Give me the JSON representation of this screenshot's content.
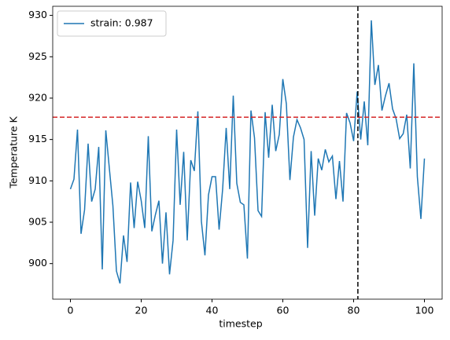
{
  "chart_data": {
    "type": "line",
    "x_label": "timestep",
    "y_label": "Temperature K",
    "x": [
      0,
      1,
      2,
      3,
      4,
      5,
      6,
      7,
      8,
      9,
      10,
      11,
      12,
      13,
      14,
      15,
      16,
      17,
      18,
      19,
      20,
      21,
      22,
      23,
      24,
      25,
      26,
      27,
      28,
      29,
      30,
      31,
      32,
      33,
      34,
      35,
      36,
      37,
      38,
      39,
      40,
      41,
      42,
      43,
      44,
      45,
      46,
      47,
      48,
      49,
      50,
      51,
      52,
      53,
      54,
      55,
      56,
      57,
      58,
      59,
      60,
      61,
      62,
      63,
      64,
      65,
      66,
      67,
      68,
      69,
      70,
      71,
      72,
      73,
      74,
      75,
      76,
      77,
      78,
      79,
      80,
      81,
      82,
      83,
      84,
      85,
      86,
      87,
      88,
      89,
      90,
      91,
      92,
      93,
      94,
      95,
      96,
      97,
      98,
      99,
      100
    ],
    "series": [
      {
        "name": "strain: 0.987",
        "color": "#1f77b4",
        "values": [
          909.0,
          910.2,
          916.2,
          903.6,
          906.5,
          914.5,
          907.5,
          909.0,
          914.1,
          899.3,
          916.1,
          911.5,
          907.0,
          899.1,
          897.6,
          903.4,
          900.2,
          909.8,
          904.3,
          909.9,
          907.6,
          904.3,
          915.4,
          903.9,
          905.9,
          907.6,
          900.0,
          906.2,
          898.7,
          902.8,
          916.2,
          907.1,
          913.5,
          902.8,
          912.5,
          911.2,
          918.4,
          905.1,
          901.0,
          908.3,
          910.5,
          910.5,
          904.1,
          909.0,
          916.4,
          909.0,
          920.3,
          909.7,
          907.4,
          907.1,
          900.6,
          918.5,
          915.2,
          906.4,
          905.7,
          918.3,
          912.8,
          919.2,
          913.6,
          915.6,
          922.3,
          919.3,
          910.1,
          915.3,
          917.4,
          916.4,
          915.0,
          901.9,
          913.6,
          905.8,
          912.7,
          911.3,
          913.8,
          912.3,
          913.0,
          907.8,
          912.4,
          907.5,
          918.2,
          917.0,
          914.8,
          920.8,
          915.0,
          919.6,
          914.3,
          929.4,
          921.6,
          924.0,
          918.5,
          920.3,
          921.8,
          918.7,
          917.5,
          915.1,
          915.7,
          918.0,
          911.5,
          924.2,
          910.5,
          905.4,
          912.7
        ]
      }
    ],
    "hline": {
      "value": 917.7,
      "color": "#d62728"
    },
    "vline": {
      "value": 81.2,
      "color": "#000000"
    },
    "xlim": [
      -5,
      105
    ],
    "ylim": [
      895.7,
      931.1
    ],
    "xticks": [
      0,
      20,
      40,
      60,
      80,
      100
    ],
    "yticks": [
      900,
      905,
      910,
      915,
      920,
      925,
      930
    ],
    "legend": "upper left"
  }
}
